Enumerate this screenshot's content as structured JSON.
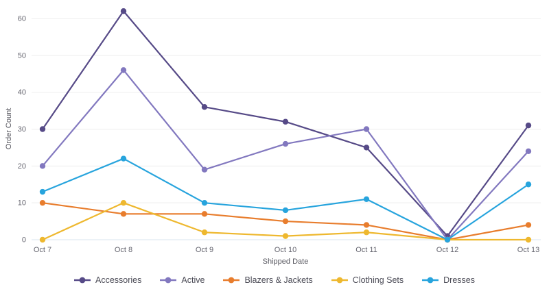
{
  "chart_data": {
    "type": "line",
    "title": "",
    "xlabel": "Shipped Date",
    "ylabel": "Order Count",
    "categories": [
      "Oct 7",
      "Oct 8",
      "Oct 9",
      "Oct 10",
      "Oct 11",
      "Oct 12",
      "Oct 13"
    ],
    "y_ticks": [
      0,
      10,
      20,
      30,
      40,
      50,
      60
    ],
    "ylim": [
      0,
      62
    ],
    "grid": true,
    "legend_position": "bottom",
    "markers": "filled-circle",
    "series": [
      {
        "name": "Accessories",
        "color": "#564a87",
        "values": [
          30,
          62,
          36,
          32,
          25,
          1,
          31
        ]
      },
      {
        "name": "Active",
        "color": "#8278bf",
        "values": [
          20,
          46,
          19,
          26,
          30,
          0,
          24
        ]
      },
      {
        "name": "Blazers & Jackets",
        "color": "#e87d2d",
        "values": [
          10,
          7,
          7,
          5,
          4,
          0,
          4
        ]
      },
      {
        "name": "Clothing Sets",
        "color": "#eeb82f",
        "values": [
          0,
          10,
          2,
          1,
          2,
          0,
          0
        ]
      },
      {
        "name": "Dresses",
        "color": "#27a4dd",
        "values": [
          13,
          22,
          10,
          8,
          11,
          0,
          15
        ]
      }
    ]
  },
  "colors": {
    "background": "#ffffff",
    "gridline": "#ededed",
    "zero_line": "#d9e4ef",
    "tick_text": "#65656f",
    "axis_title_text": "#56565e",
    "legend_text": "#4c4c57"
  }
}
